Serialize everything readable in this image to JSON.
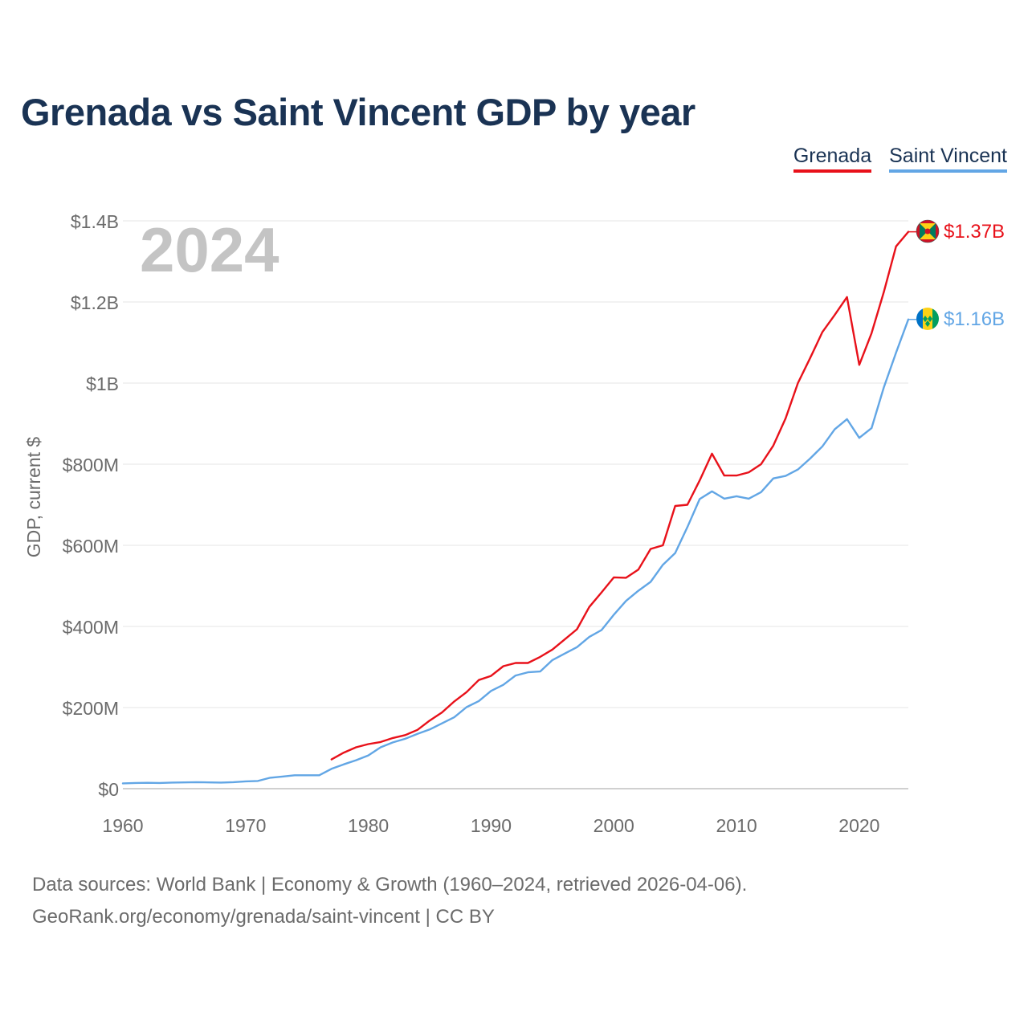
{
  "page": {
    "title": "Grenada vs Saint Vincent GDP by year"
  },
  "legend": [
    {
      "label": "Grenada",
      "color": "#e8111a"
    },
    {
      "label": "Saint Vincent",
      "color": "#62a6e5"
    }
  ],
  "footer": {
    "line1": "Data sources: World Bank | Economy & Growth (1960–2024, retrieved 2026-04-06).",
    "line2": "GeoRank.org/economy/grenada/saint-vincent | CC BY"
  },
  "chart_data": {
    "type": "line",
    "title": "Grenada vs Saint Vincent GDP by year",
    "ylabel": "GDP, current $",
    "xlabel": "",
    "highlight_year": "2024",
    "xlim": [
      1960,
      2024
    ],
    "ylim": [
      0,
      1400000000
    ],
    "x_ticks": [
      1960,
      1970,
      1980,
      1990,
      2000,
      2010,
      2020
    ],
    "y_ticks": [
      {
        "value": 0,
        "label": "$0"
      },
      {
        "value": 200000000,
        "label": "$200M"
      },
      {
        "value": 400000000,
        "label": "$400M"
      },
      {
        "value": 600000000,
        "label": "$600M"
      },
      {
        "value": 800000000,
        "label": "$800M"
      },
      {
        "value": 1000000000,
        "label": "$1B"
      },
      {
        "value": 1200000000,
        "label": "$1.2B"
      },
      {
        "value": 1400000000,
        "label": "$1.4B"
      }
    ],
    "grid": true,
    "legend_position": "top-right",
    "series": [
      {
        "name": "Grenada",
        "color": "#e8111a",
        "end_label": "$1.37B",
        "flag_icon": "grenada-flag-icon",
        "x": [
          1977,
          1978,
          1979,
          1980,
          1981,
          1982,
          1983,
          1984,
          1985,
          1986,
          1987,
          1988,
          1989,
          1990,
          1991,
          1992,
          1993,
          1994,
          1995,
          1996,
          1997,
          1998,
          1999,
          2000,
          2001,
          2002,
          2003,
          2004,
          2005,
          2006,
          2007,
          2008,
          2009,
          2010,
          2011,
          2012,
          2013,
          2014,
          2015,
          2016,
          2017,
          2018,
          2019,
          2020,
          2021,
          2022,
          2023,
          2024
        ],
        "values": [
          72000000,
          89000000,
          102000000,
          110000000,
          115000000,
          125000000,
          132000000,
          145000000,
          168000000,
          188000000,
          215000000,
          238000000,
          268000000,
          278000000,
          302000000,
          310000000,
          310000000,
          325000000,
          343000000,
          368000000,
          393000000,
          448000000,
          484000000,
          521000000,
          520000000,
          540000000,
          591000000,
          600000000,
          697000000,
          700000000,
          760000000,
          826000000,
          772000000,
          772000000,
          780000000,
          800000000,
          846000000,
          913000000,
          1000000000,
          1062000000,
          1126000000,
          1168000000,
          1212000000,
          1045000000,
          1123000000,
          1224000000,
          1337000000,
          1373000000
        ]
      },
      {
        "name": "Saint Vincent",
        "color": "#62a6e5",
        "end_label": "$1.16B",
        "flag_icon": "saint-vincent-flag-icon",
        "x": [
          1960,
          1961,
          1962,
          1963,
          1964,
          1965,
          1966,
          1967,
          1968,
          1969,
          1970,
          1971,
          1972,
          1973,
          1974,
          1975,
          1976,
          1977,
          1978,
          1979,
          1980,
          1981,
          1982,
          1983,
          1984,
          1985,
          1986,
          1987,
          1988,
          1989,
          1990,
          1991,
          1992,
          1993,
          1994,
          1995,
          1996,
          1997,
          1998,
          1999,
          2000,
          2001,
          2002,
          2003,
          2004,
          2005,
          2006,
          2007,
          2008,
          2009,
          2010,
          2011,
          2012,
          2013,
          2014,
          2015,
          2016,
          2017,
          2018,
          2019,
          2020,
          2021,
          2022,
          2023,
          2024
        ],
        "values": [
          13000000,
          14000000,
          14500000,
          14000000,
          15000000,
          15500000,
          16000000,
          15500000,
          15000000,
          16000000,
          18000000,
          19000000,
          27000000,
          30000000,
          33000000,
          33000000,
          33000000,
          49000000,
          60000000,
          70000000,
          82000000,
          102000000,
          114000000,
          123000000,
          135000000,
          146000000,
          161000000,
          176000000,
          201000000,
          216000000,
          241000000,
          256000000,
          279000000,
          287000000,
          289000000,
          317000000,
          333000000,
          349000000,
          374000000,
          391000000,
          429000000,
          463000000,
          488000000,
          510000000,
          552000000,
          581000000,
          645000000,
          714000000,
          733000000,
          715000000,
          721000000,
          715000000,
          731000000,
          765000000,
          771000000,
          787000000,
          814000000,
          844000000,
          886000000,
          911000000,
          865000000,
          889000000,
          989000000,
          1075000000,
          1157000000
        ]
      }
    ]
  }
}
